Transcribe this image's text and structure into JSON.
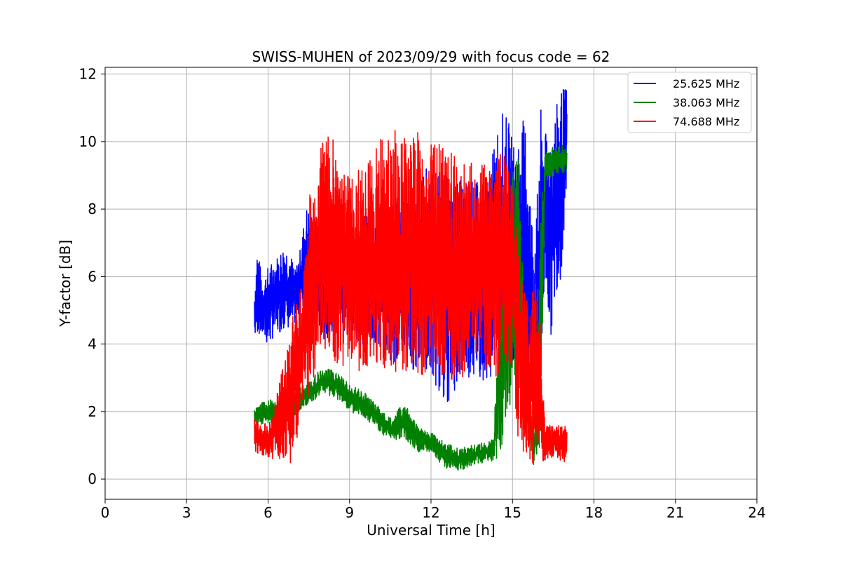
{
  "chart_data": {
    "type": "line",
    "title": "SWISS-MUHEN of 2023/09/29 with focus code = 62",
    "xlabel": "Universal Time [h]",
    "ylabel": "Y-factor [dB]",
    "xlim": [
      0,
      24
    ],
    "ylim": [
      -0.6,
      12.2
    ],
    "xticks": [
      0,
      3,
      6,
      9,
      12,
      15,
      18,
      21,
      24
    ],
    "yticks": [
      0,
      2,
      4,
      6,
      8,
      10,
      12
    ],
    "grid": true,
    "legend_position": "top-right",
    "series": [
      {
        "name": "25.625 MHz",
        "color": "#0000ff",
        "x": [
          5.5,
          5.6,
          5.8,
          6.0,
          6.2,
          6.4,
          6.6,
          6.8,
          7.0,
          7.2,
          7.4,
          7.6,
          7.8,
          8.0,
          8.3,
          8.6,
          9.0,
          9.4,
          9.8,
          10.2,
          10.6,
          11.0,
          11.4,
          11.8,
          12.2,
          12.6,
          13.0,
          13.4,
          13.8,
          14.2,
          14.4,
          14.6,
          14.8,
          15.0,
          15.2,
          15.3,
          15.5,
          15.7,
          15.9,
          16.0,
          16.2,
          16.4,
          16.6,
          16.8,
          17.0
        ],
        "min": [
          4.1,
          4.3,
          4.2,
          3.9,
          4.2,
          4.3,
          4.5,
          4.4,
          4.6,
          4.9,
          5.0,
          5.1,
          4.6,
          4.0,
          4.3,
          4.2,
          4.4,
          4.0,
          4.0,
          3.6,
          3.5,
          3.3,
          3.2,
          3.3,
          2.7,
          2.2,
          2.8,
          3.0,
          2.9,
          3.0,
          3.1,
          3.4,
          2.8,
          3.2,
          4.6,
          4.3,
          3.6,
          2.0,
          1.0,
          1.2,
          6.0,
          4.1,
          5.5,
          6.0,
          8.7
        ],
        "max": [
          5.6,
          6.9,
          5.9,
          6.3,
          6.5,
          6.7,
          7.0,
          6.8,
          6.2,
          6.9,
          8.1,
          8.0,
          7.6,
          8.3,
          8.0,
          7.8,
          7.6,
          7.8,
          7.9,
          8.2,
          8.1,
          8.5,
          8.6,
          9.3,
          9.0,
          9.0,
          8.9,
          8.9,
          8.8,
          9.2,
          10.5,
          10.9,
          10.8,
          10.1,
          10.0,
          10.7,
          10.6,
          8.0,
          8.0,
          11.2,
          10.2,
          10.5,
          11.0,
          11.6,
          11.6
        ]
      },
      {
        "name": "38.063 MHz",
        "color": "#008000",
        "x": [
          5.5,
          6.0,
          6.5,
          7.0,
          7.5,
          8.0,
          8.5,
          9.0,
          9.5,
          10.0,
          10.5,
          11.0,
          11.5,
          12.0,
          12.5,
          13.0,
          13.5,
          14.0,
          14.3,
          14.5,
          14.8,
          15.0,
          15.2,
          15.4,
          15.6,
          15.8,
          16.0,
          16.2,
          16.4,
          16.6,
          16.8,
          17.0
        ],
        "min": [
          1.6,
          1.6,
          1.7,
          1.9,
          2.2,
          2.5,
          2.4,
          2.0,
          1.8,
          1.5,
          1.1,
          1.2,
          0.8,
          0.8,
          0.3,
          0.2,
          0.4,
          0.5,
          0.5,
          0.6,
          1.6,
          2.5,
          3.0,
          1.5,
          1.0,
          0.5,
          0.0,
          8.8,
          8.9,
          9.0,
          9.0,
          9.1
        ],
        "max": [
          2.1,
          2.4,
          2.4,
          2.6,
          2.9,
          3.3,
          3.2,
          2.8,
          2.6,
          2.2,
          1.8,
          2.3,
          1.6,
          1.4,
          1.1,
          0.9,
          1.0,
          1.1,
          1.2,
          4.8,
          7.5,
          9.0,
          9.7,
          6.0,
          3.0,
          1.2,
          8.0,
          9.7,
          9.8,
          9.9,
          10.0,
          9.8
        ]
      },
      {
        "name": "74.688 MHz",
        "color": "#ff0000",
        "x": [
          5.5,
          5.8,
          6.1,
          6.4,
          6.7,
          6.9,
          7.1,
          7.3,
          7.6,
          7.8,
          8.0,
          8.3,
          8.6,
          9.0,
          9.4,
          9.8,
          10.2,
          10.6,
          11.0,
          11.4,
          11.8,
          12.2,
          12.6,
          13.0,
          13.4,
          13.8,
          14.2,
          14.6,
          15.0,
          15.2,
          15.4,
          15.6,
          15.8,
          16.0,
          16.2,
          16.4,
          16.6,
          16.8,
          17.0
        ],
        "min": [
          0.8,
          0.7,
          0.6,
          0.6,
          0.6,
          0.4,
          1.2,
          2.2,
          2.6,
          3.6,
          4.0,
          3.6,
          3.4,
          3.2,
          3.1,
          3.3,
          3.2,
          3.1,
          3.0,
          3.0,
          3.1,
          3.0,
          2.9,
          2.8,
          3.2,
          3.3,
          3.0,
          3.1,
          2.6,
          1.2,
          0.8,
          0.6,
          0.3,
          0.5,
          0.5,
          0.6,
          0.7,
          0.5,
          0.5
        ],
        "max": [
          1.8,
          1.6,
          1.8,
          3.0,
          3.8,
          4.8,
          5.5,
          6.3,
          9.2,
          8.2,
          10.6,
          10.5,
          9.5,
          9.0,
          9.3,
          9.5,
          10.2,
          10.5,
          10.3,
          10.5,
          10.3,
          10.0,
          9.7,
          9.7,
          9.5,
          9.3,
          9.4,
          9.8,
          9.0,
          7.5,
          5.9,
          5.0,
          6.2,
          5.5,
          1.6,
          1.6,
          1.6,
          1.7,
          1.5
        ]
      }
    ]
  }
}
